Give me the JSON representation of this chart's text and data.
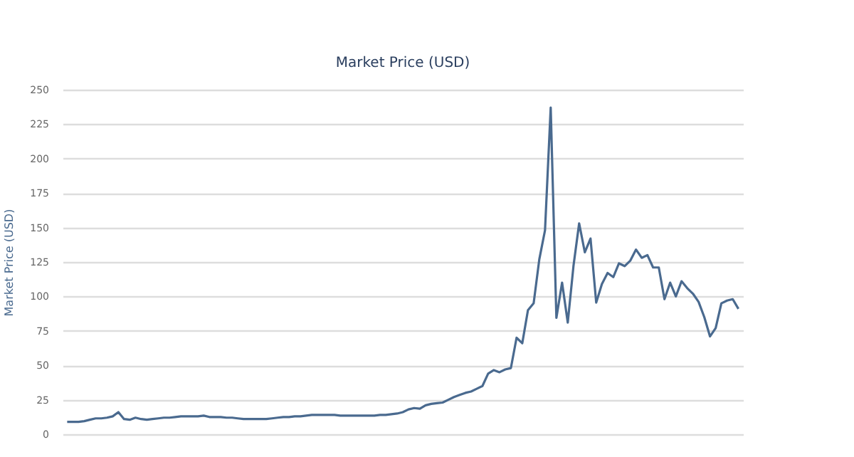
{
  "chart_data": {
    "type": "line",
    "title": "Market Price (USD)",
    "ylabel": "Market Price (USD)",
    "categories": [
      null,
      null,
      null,
      null,
      null,
      null,
      null,
      null,
      null,
      null,
      null,
      null,
      null,
      null,
      null,
      null,
      null,
      null,
      null,
      null,
      null,
      null,
      null,
      null,
      null,
      null,
      null,
      null,
      null,
      null,
      null,
      null,
      null,
      null,
      null,
      null,
      null,
      null,
      null,
      null,
      null,
      null,
      null,
      null,
      null,
      null,
      null,
      null,
      null,
      null,
      null,
      null,
      null,
      null,
      null,
      null,
      null,
      null,
      null,
      null,
      null,
      null,
      null,
      null,
      null,
      null,
      null,
      null,
      null,
      null,
      null,
      null,
      null,
      null,
      null,
      null,
      null,
      null,
      null,
      null,
      null,
      null,
      null,
      null,
      null,
      null,
      null,
      null,
      null,
      null,
      null,
      null,
      null,
      null,
      null,
      null,
      null,
      null,
      null,
      null,
      null,
      null,
      null,
      null,
      null,
      null,
      null,
      null,
      null,
      null,
      null,
      null,
      null,
      null,
      null,
      null,
      null,
      null,
      null
    ],
    "series": [
      {
        "color": "#4a6a8f",
        "values": [
          9,
          9,
          9,
          9.5,
          10.5,
          11.5,
          11.5,
          12,
          13,
          16,
          11,
          10.5,
          12,
          11,
          10.5,
          11,
          11.5,
          12,
          12,
          12.5,
          13,
          13,
          13,
          13,
          13.5,
          12.5,
          12.5,
          12.5,
          12,
          12,
          11.5,
          11,
          11,
          11,
          11,
          11,
          11.5,
          12,
          12.5,
          12.5,
          13,
          13,
          13.5,
          14,
          14,
          14,
          14,
          14,
          13.5,
          13.5,
          13.5,
          13.5,
          13.5,
          13.5,
          13.5,
          14,
          14,
          14.5,
          15,
          16,
          18,
          19,
          18.5,
          21,
          22,
          22.5,
          23,
          25,
          27,
          28.5,
          30,
          31,
          33,
          35,
          44,
          46.5,
          45,
          47,
          48,
          70,
          66,
          90,
          95,
          127,
          148,
          237,
          84.5,
          110,
          81,
          122,
          153,
          132,
          142,
          95.5,
          109,
          117,
          114,
          124,
          122,
          126,
          134,
          128,
          130,
          121,
          121,
          98,
          110,
          100,
          111,
          106,
          102,
          96,
          85,
          71,
          77,
          95,
          97,
          98,
          91
        ]
      }
    ],
    "ylim": [
      0,
      250
    ],
    "yticks": [
      0,
      25,
      50,
      75,
      100,
      125,
      150,
      175,
      200,
      225,
      250
    ],
    "grid": "y",
    "legend": false,
    "marker": "none",
    "line_style": "solid"
  }
}
